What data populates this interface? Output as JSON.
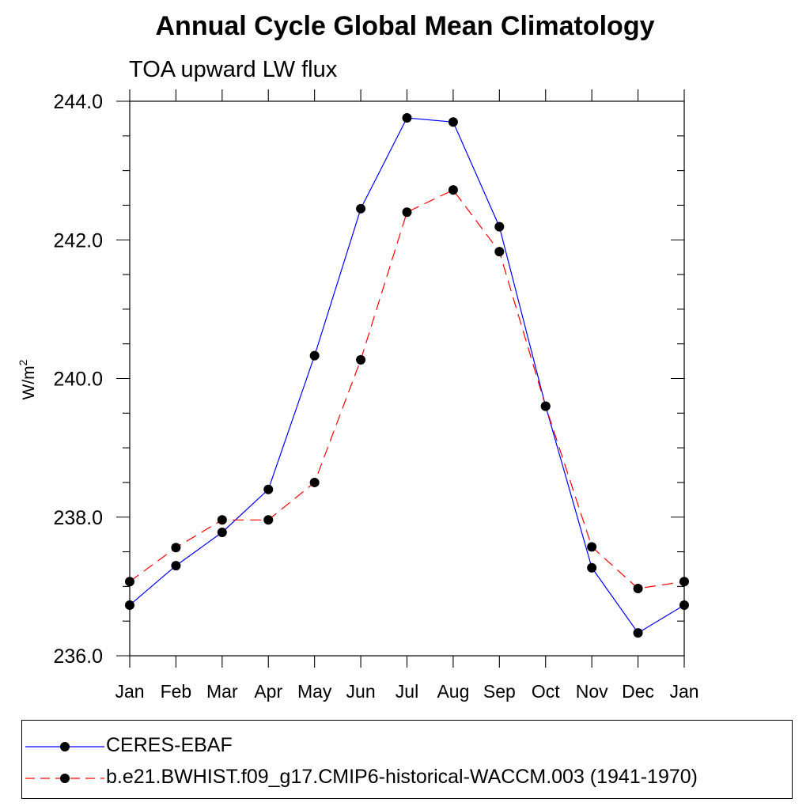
{
  "chart_data": {
    "type": "line",
    "title": "Annual Cycle Global Mean Climatology",
    "subtitle": "TOA upward LW flux",
    "ylabel": "W/m",
    "ylabel_superscript": "2",
    "ylim": [
      236.0,
      244.0
    ],
    "y_ticks": [
      "236.0",
      "238.0",
      "240.0",
      "242.0",
      "244.0"
    ],
    "categories": [
      "Jan",
      "Feb",
      "Mar",
      "Apr",
      "May",
      "Jun",
      "Jul",
      "Aug",
      "Sep",
      "Oct",
      "Nov",
      "Dec",
      "Jan"
    ],
    "series": [
      {
        "name": "CERES-EBAF",
        "color": "#0000ff",
        "line_style": "solid",
        "marker": "filled-circle",
        "values": [
          236.73,
          237.3,
          237.78,
          238.4,
          240.33,
          242.45,
          243.76,
          243.7,
          242.19,
          239.6,
          237.27,
          236.33,
          236.73
        ]
      },
      {
        "name": "b.e21.BWHIST.f09_g17.CMIP6-historical-WACCM.003 (1941-1970)",
        "color": "#ff0000",
        "line_style": "dashed",
        "marker": "filled-circle",
        "values": [
          237.07,
          237.56,
          237.96,
          237.96,
          238.5,
          240.27,
          242.4,
          242.72,
          241.83,
          239.6,
          237.57,
          236.97,
          237.07
        ]
      }
    ],
    "grid": false,
    "legend_position": "bottom"
  }
}
